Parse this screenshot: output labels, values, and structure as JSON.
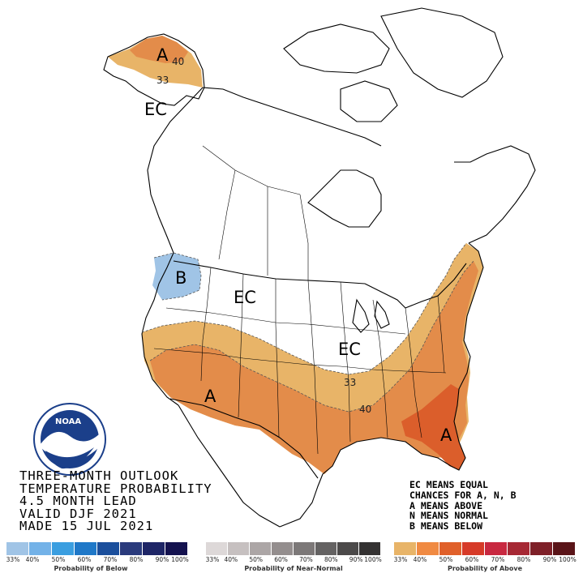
{
  "title_lines": [
    "THREE-MONTH OUTLOOK",
    "TEMPERATURE PROBABILITY",
    "4.5 MONTH LEAD",
    "VALID DJF 2021",
    "MADE 15 JUL 2021"
  ],
  "legend_notes": [
    "EC MEANS EQUAL",
    "CHANCES FOR A, N, B",
    "A MEANS ABOVE",
    "N MEANS NORMAL",
    "B MEANS BELOW"
  ],
  "region_labels": {
    "alaska_above": "A",
    "alaska_ec": "EC",
    "northwest_below": "B",
    "north_central_ec": "EC",
    "great_lakes_ec": "EC",
    "southwest_above": "A",
    "florida_above": "A"
  },
  "contour_labels": {
    "alaska_40": "40",
    "alaska_33": "33",
    "southeast_33": "33",
    "southeast_40": "40"
  },
  "probability_levels": {
    "below_level": "33",
    "above_levels": [
      "33",
      "40"
    ]
  },
  "scales": {
    "below": {
      "title": "Probability of Below",
      "ticks": [
        "33%",
        "40%",
        "50%",
        "60%",
        "70%",
        "80%",
        "90%",
        "100%"
      ],
      "colors": [
        "#a0c4e6",
        "#73b2e8",
        "#3a9ee0",
        "#1f78c8",
        "#1b4f9c",
        "#2a3a7c",
        "#1e2566",
        "#14124f"
      ]
    },
    "normal": {
      "title": "Probability of Near-Normal",
      "ticks": [
        "33%",
        "40%",
        "50%",
        "60%",
        "70%",
        "80%",
        "90%",
        "100%"
      ],
      "colors": [
        "#ddd8d8",
        "#c6c0c0",
        "#aca6a6",
        "#948e8e",
        "#7c7878",
        "#646262",
        "#4c4a4a",
        "#343232"
      ]
    },
    "above": {
      "title": "Probability of Above",
      "ticks": [
        "33%",
        "40%",
        "50%",
        "60%",
        "70%",
        "80%",
        "90%",
        "100%"
      ],
      "colors": [
        "#e8b468",
        "#f08a42",
        "#e0602a",
        "#d63a28",
        "#c82840",
        "#a62834",
        "#7e2028",
        "#5a1418"
      ]
    }
  },
  "colors": {
    "above_33": "#e8b468",
    "above_40": "#e38c4a",
    "above_50": "#db5e2b",
    "below_33": "#a0c4e6"
  },
  "logo": {
    "text": "NOAA"
  }
}
